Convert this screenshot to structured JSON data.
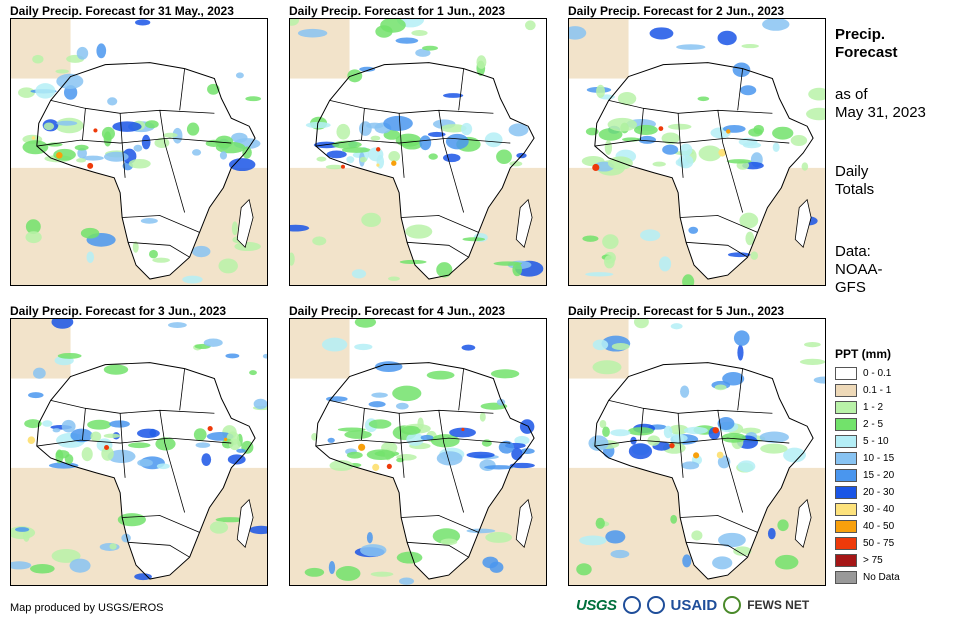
{
  "panels": [
    {
      "title": "Daily Precip. Forecast for 31 May., 2023"
    },
    {
      "title": "Daily Precip. Forecast for 1 Jun., 2023"
    },
    {
      "title": "Daily Precip. Forecast for 2 Jun., 2023"
    },
    {
      "title": "Daily Precip. Forecast for 3 Jun., 2023"
    },
    {
      "title": "Daily Precip. Forecast for 4 Jun., 2023"
    },
    {
      "title": "Daily Precip. Forecast for 5 Jun., 2023"
    }
  ],
  "side": {
    "heading_line1": "Precip.",
    "heading_line2": "Forecast",
    "asof_line1": "as of",
    "asof_line2": "May 31, 2023",
    "totals_line1": "Daily",
    "totals_line2": "Totals",
    "data_line1": "Data:",
    "data_line2": "NOAA-",
    "data_line3": "GFS"
  },
  "legend": {
    "title": "PPT (mm)",
    "items": [
      {
        "label": "0 - 0.1",
        "color": "#ffffff"
      },
      {
        "label": "0.1 - 1",
        "color": "#eed9b8"
      },
      {
        "label": "1 - 2",
        "color": "#b9f2a8"
      },
      {
        "label": "2 - 5",
        "color": "#72e26b"
      },
      {
        "label": "5 - 10",
        "color": "#b4eef6"
      },
      {
        "label": "10 - 15",
        "color": "#88c3f2"
      },
      {
        "label": "15 - 20",
        "color": "#4a96ee"
      },
      {
        "label": "20 - 30",
        "color": "#1a55e6"
      },
      {
        "label": "30 - 40",
        "color": "#fde27c"
      },
      {
        "label": "40 - 50",
        "color": "#f8a00c"
      },
      {
        "label": "50 - 75",
        "color": "#ee3a0a"
      },
      {
        "label": "> 75",
        "color": "#a51616"
      },
      {
        "label": "No Data",
        "color": "#999999"
      }
    ]
  },
  "credit": "Map produced by USGS/EROS",
  "logos": {
    "usgs": "USGS",
    "usaid": "USAID",
    "fews": "FEWS NET"
  }
}
